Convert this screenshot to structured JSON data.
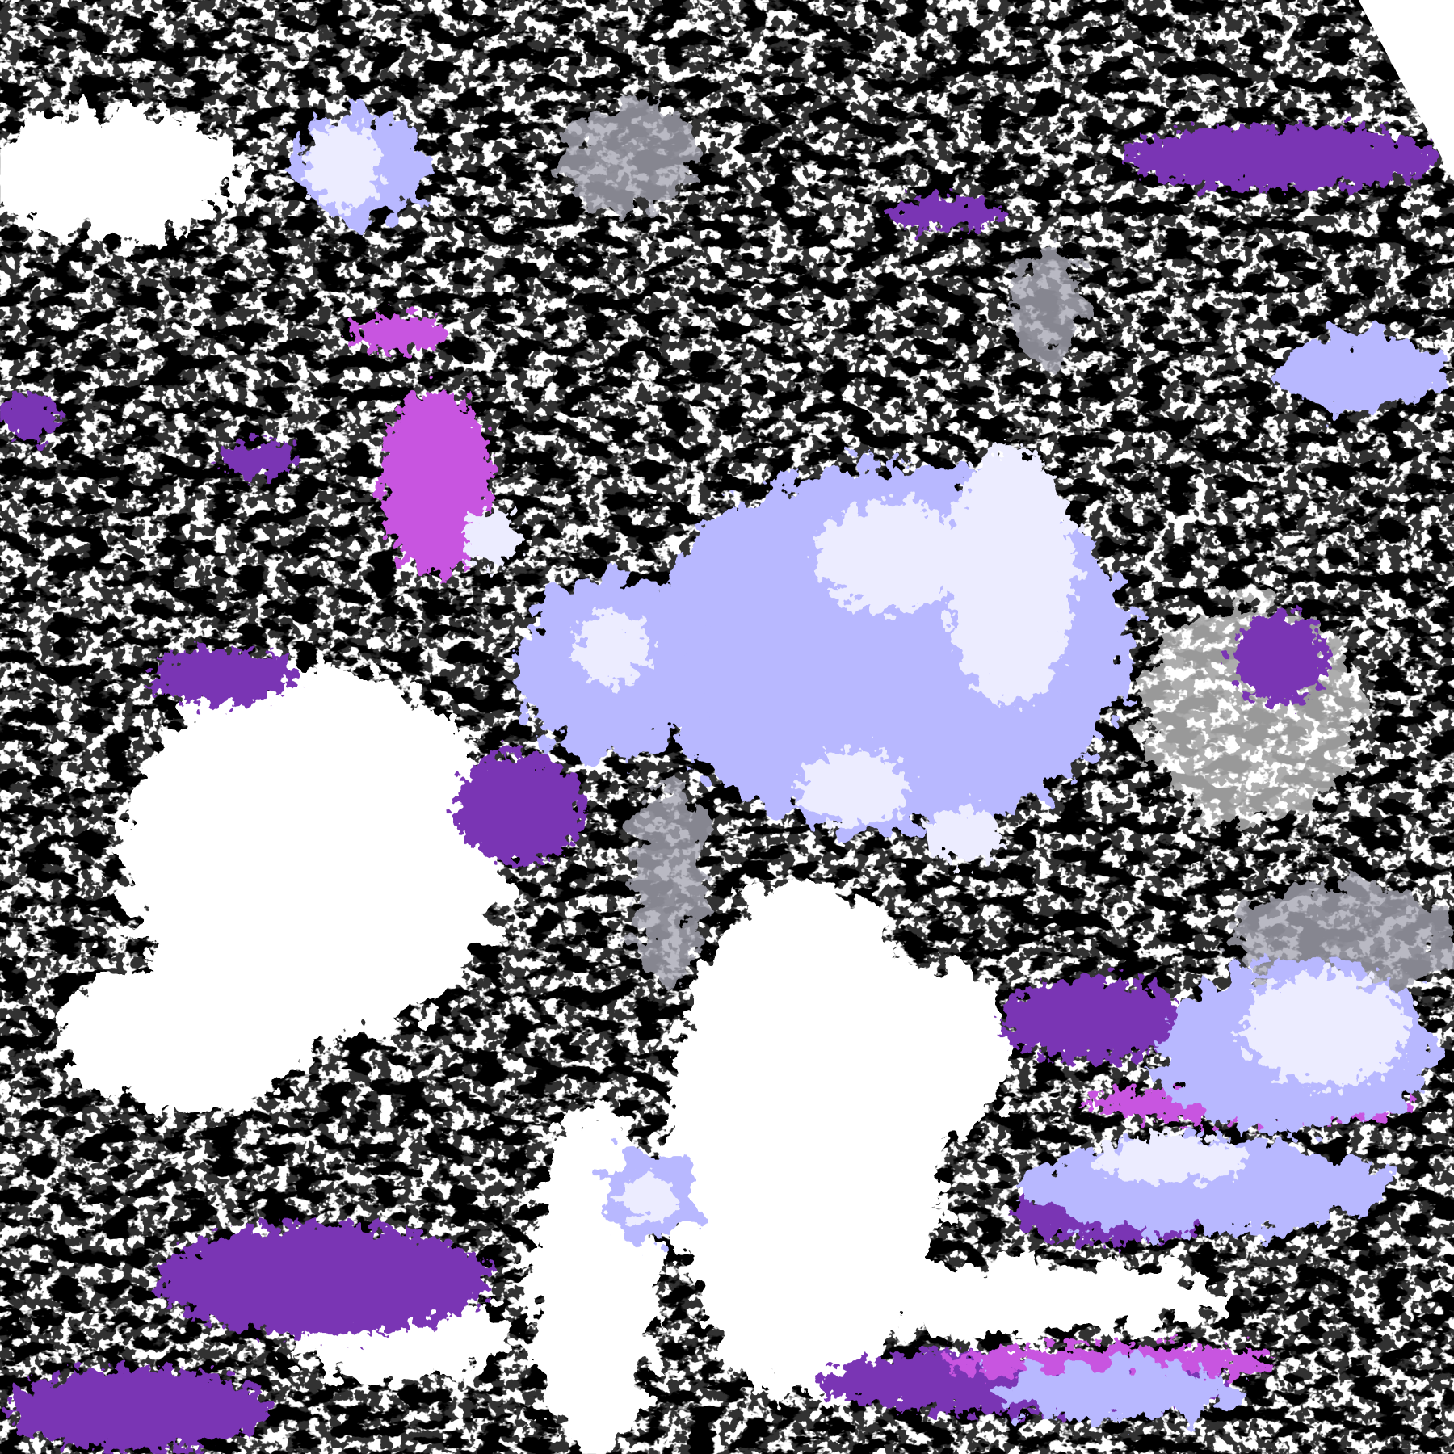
{
  "image": {
    "kind": "satellite cloud-type classification composite",
    "colors": {
      "clear": "#ffffff",
      "low_cloud_dark": "#b08a08",
      "low_cloud": "#d8ac00",
      "mid_cloud": "#7a35b4",
      "mid_cloud_bright": "#c855e0",
      "high_cloud_thin": "#a8a8b4",
      "high_cloud": "#b8b8ff",
      "deep_convection": "#ececff"
    }
  }
}
